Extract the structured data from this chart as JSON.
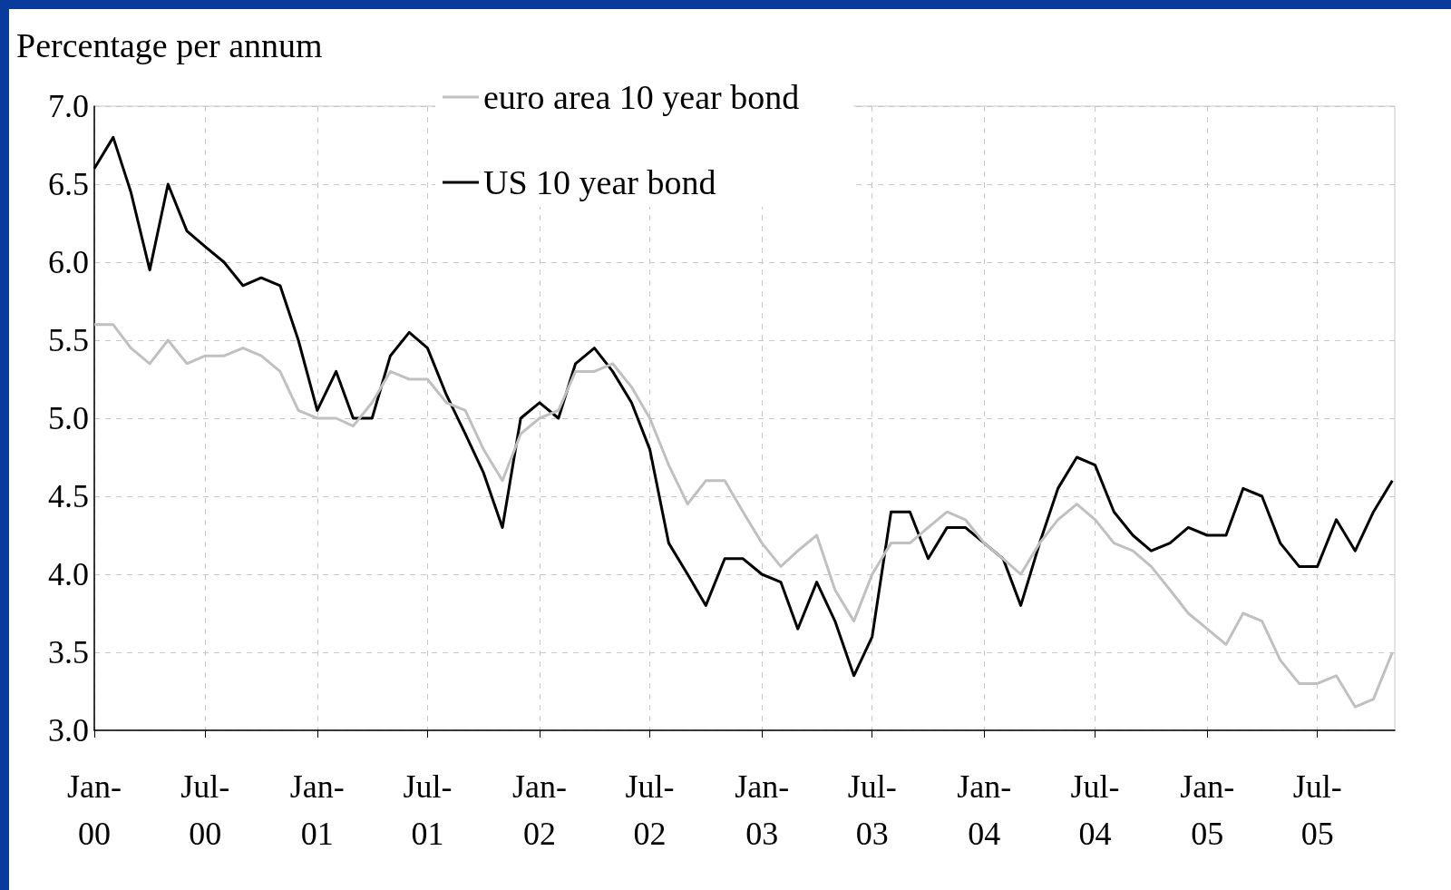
{
  "chart_data": {
    "type": "line",
    "ylabel": "Percentage per annum",
    "x": [
      "2000-01",
      "2000-02",
      "2000-03",
      "2000-04",
      "2000-05",
      "2000-06",
      "2000-07",
      "2000-08",
      "2000-09",
      "2000-10",
      "2000-11",
      "2000-12",
      "2001-01",
      "2001-02",
      "2001-03",
      "2001-04",
      "2001-05",
      "2001-06",
      "2001-07",
      "2001-08",
      "2001-09",
      "2001-10",
      "2001-11",
      "2001-12",
      "2002-01",
      "2002-02",
      "2002-03",
      "2002-04",
      "2002-05",
      "2002-06",
      "2002-07",
      "2002-08",
      "2002-09",
      "2002-10",
      "2002-11",
      "2002-12",
      "2003-01",
      "2003-02",
      "2003-03",
      "2003-04",
      "2003-05",
      "2003-06",
      "2003-07",
      "2003-08",
      "2003-09",
      "2003-10",
      "2003-11",
      "2003-12",
      "2004-01",
      "2004-02",
      "2004-03",
      "2004-04",
      "2004-05",
      "2004-06",
      "2004-07",
      "2004-08",
      "2004-09",
      "2004-10",
      "2004-11",
      "2004-12",
      "2005-01",
      "2005-02",
      "2005-03",
      "2005-04",
      "2005-05",
      "2005-06",
      "2005-07",
      "2005-08",
      "2005-09",
      "2005-10",
      "2005-11"
    ],
    "series": [
      {
        "name": "euro area 10 year bond",
        "color": "#c0c0c0",
        "values": [
          5.6,
          5.6,
          5.45,
          5.35,
          5.5,
          5.35,
          5.4,
          5.4,
          5.45,
          5.4,
          5.3,
          5.05,
          5.0,
          5.0,
          4.95,
          5.1,
          5.3,
          5.25,
          5.25,
          5.1,
          5.05,
          4.8,
          4.6,
          4.9,
          5.0,
          5.05,
          5.3,
          5.3,
          5.35,
          5.2,
          5.0,
          4.7,
          4.45,
          4.6,
          4.6,
          4.4,
          4.2,
          4.05,
          4.15,
          4.25,
          3.9,
          3.7,
          4.0,
          4.2,
          4.2,
          4.3,
          4.4,
          4.35,
          4.2,
          4.1,
          4.0,
          4.2,
          4.35,
          4.45,
          4.35,
          4.2,
          4.15,
          4.05,
          3.9,
          3.75,
          3.65,
          3.55,
          3.75,
          3.7,
          3.45,
          3.3,
          3.3,
          3.35,
          3.15,
          3.2,
          3.5
        ]
      },
      {
        "name": "US 10 year bond",
        "color": "#000000",
        "values": [
          6.6,
          6.8,
          6.45,
          5.95,
          6.5,
          6.2,
          6.1,
          6.0,
          5.85,
          5.9,
          5.85,
          5.5,
          5.05,
          5.3,
          5.0,
          5.0,
          5.4,
          5.55,
          5.45,
          5.15,
          4.9,
          4.65,
          4.3,
          5.0,
          5.1,
          5.0,
          5.35,
          5.45,
          5.3,
          5.1,
          4.8,
          4.2,
          4.0,
          3.8,
          4.1,
          4.1,
          4.0,
          3.95,
          3.65,
          3.95,
          3.7,
          3.35,
          3.6,
          4.4,
          4.4,
          4.1,
          4.3,
          4.3,
          4.2,
          4.1,
          3.8,
          4.2,
          4.55,
          4.75,
          4.7,
          4.4,
          4.25,
          4.15,
          4.2,
          4.3,
          4.25,
          4.25,
          4.55,
          4.5,
          4.2,
          4.05,
          4.05,
          4.35,
          4.15,
          4.4,
          4.6
        ]
      }
    ],
    "xlim": [
      "2000-01-01",
      "2005-11-05"
    ],
    "xticks": [
      {
        "value": "2000-01",
        "label": "Jan-00"
      },
      {
        "value": "2000-07",
        "label": "Jul-00"
      },
      {
        "value": "2001-01",
        "label": "Jan-01"
      },
      {
        "value": "2001-07",
        "label": "Jul-01"
      },
      {
        "value": "2002-01",
        "label": "Jan-02"
      },
      {
        "value": "2002-07",
        "label": "Jul-02"
      },
      {
        "value": "2003-01",
        "label": "Jan-03"
      },
      {
        "value": "2003-07",
        "label": "Jul-03"
      },
      {
        "value": "2004-01",
        "label": "Jan-04"
      },
      {
        "value": "2004-07",
        "label": "Jul-04"
      },
      {
        "value": "2005-01",
        "label": "Jan-05"
      },
      {
        "value": "2005-07",
        "label": "Jul-05"
      }
    ],
    "ylim": [
      3.0,
      7.0
    ],
    "yticks": [
      {
        "value": 3,
        "label": "3.0"
      },
      {
        "value": 3.5,
        "label": "3.5"
      },
      {
        "value": 4,
        "label": "4.0"
      },
      {
        "value": 4.5,
        "label": "4.5"
      },
      {
        "value": 5,
        "label": "5.0"
      },
      {
        "value": 5.5,
        "label": "5.5"
      },
      {
        "value": 6,
        "label": "6.0"
      },
      {
        "value": 6.5,
        "label": "6.5"
      },
      {
        "value": 7,
        "label": "7.0"
      }
    ],
    "grid": true,
    "legend": "top",
    "marker": "none",
    "line_style": "solid"
  }
}
